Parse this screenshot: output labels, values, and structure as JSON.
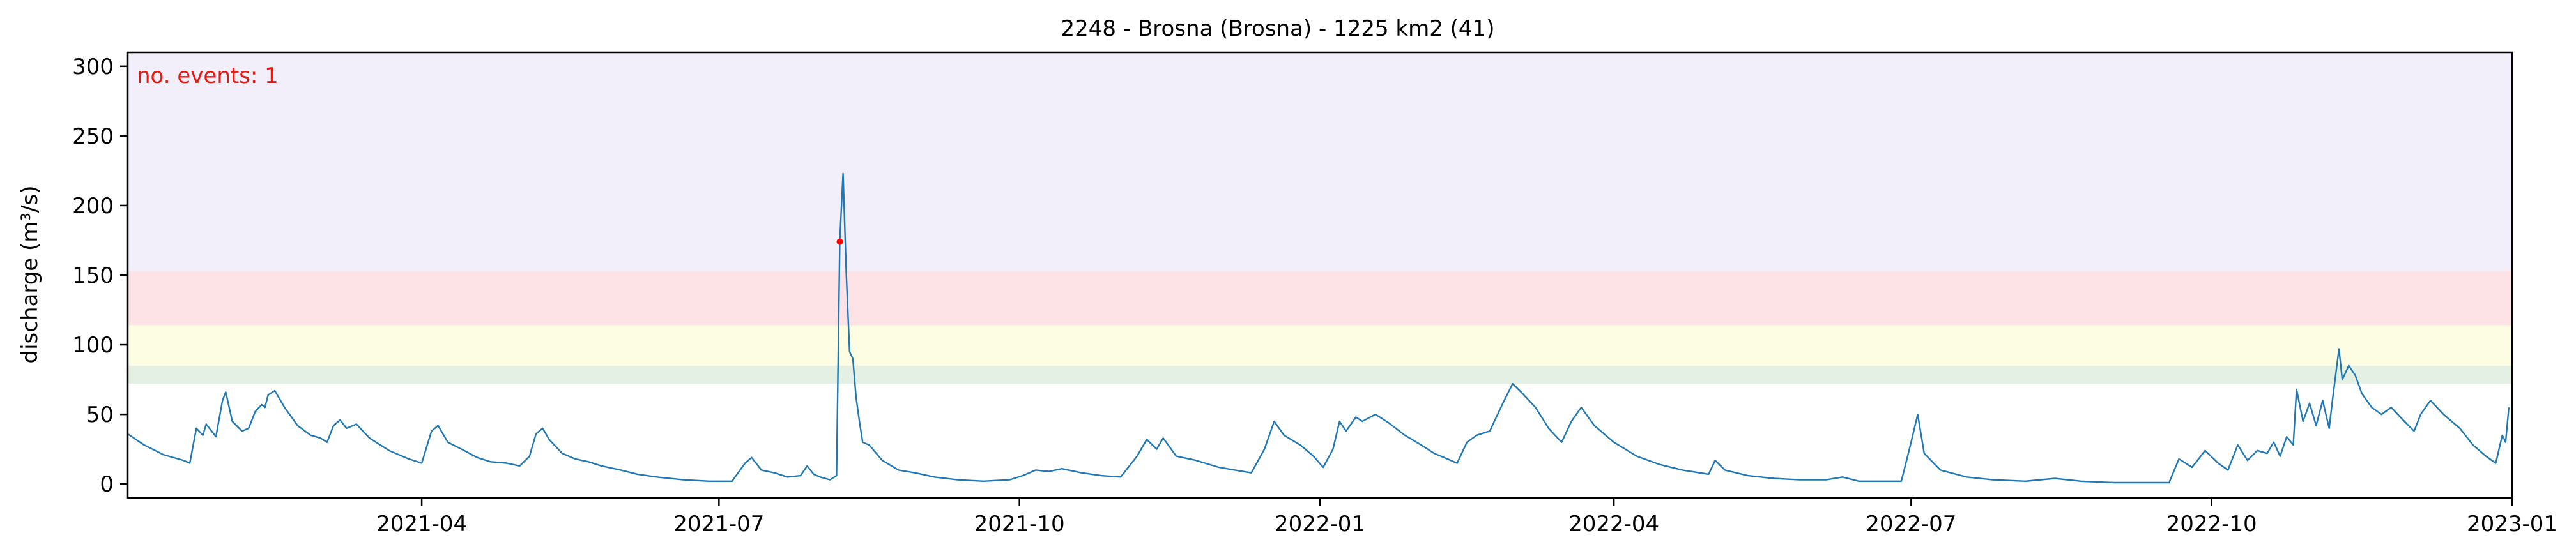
{
  "chart_data": {
    "type": "line",
    "title": "2248 - Brosna (Brosna) - 1225 km2 (41)",
    "xlabel": "",
    "ylabel": "discharge (m³/s)",
    "annotation": "no. events: 1",
    "xlim": [
      "2021-01-01",
      "2023-01-01"
    ],
    "ylim": [
      -10,
      310
    ],
    "grid": false,
    "x_ticks": [
      "2021-04",
      "2021-07",
      "2021-10",
      "2022-01",
      "2022-04",
      "2022-07",
      "2022-10",
      "2023-01"
    ],
    "y_ticks": [
      0,
      50,
      100,
      150,
      200,
      250,
      300
    ],
    "threshold_bands": [
      {
        "from": 72,
        "to": 85,
        "color": "#e3f0e3"
      },
      {
        "from": 85,
        "to": 114,
        "color": "#fdfde3"
      },
      {
        "from": 114,
        "to": 153,
        "color": "#fde3e6"
      },
      {
        "from": 153,
        "to": 310,
        "color": "#f2eefa"
      }
    ],
    "series": [
      {
        "color": "#1f77b4",
        "points": [
          [
            "2021-01-01",
            36
          ],
          [
            "2021-01-06",
            28
          ],
          [
            "2021-01-12",
            21
          ],
          [
            "2021-01-18",
            17
          ],
          [
            "2021-01-20",
            15
          ],
          [
            "2021-01-22",
            40
          ],
          [
            "2021-01-24",
            35
          ],
          [
            "2021-01-25",
            43
          ],
          [
            "2021-01-27",
            37
          ],
          [
            "2021-01-28",
            34
          ],
          [
            "2021-01-30",
            60
          ],
          [
            "2021-01-31",
            66
          ],
          [
            "2021-02-02",
            45
          ],
          [
            "2021-02-05",
            38
          ],
          [
            "2021-02-07",
            40
          ],
          [
            "2021-02-09",
            52
          ],
          [
            "2021-02-11",
            57
          ],
          [
            "2021-02-12",
            55
          ],
          [
            "2021-02-13",
            64
          ],
          [
            "2021-02-15",
            67
          ],
          [
            "2021-02-18",
            55
          ],
          [
            "2021-02-22",
            42
          ],
          [
            "2021-02-26",
            35
          ],
          [
            "2021-03-01",
            33
          ],
          [
            "2021-03-03",
            30
          ],
          [
            "2021-03-05",
            42
          ],
          [
            "2021-03-07",
            46
          ],
          [
            "2021-03-09",
            40
          ],
          [
            "2021-03-12",
            43
          ],
          [
            "2021-03-16",
            33
          ],
          [
            "2021-03-22",
            24
          ],
          [
            "2021-03-28",
            18
          ],
          [
            "2021-04-01",
            15
          ],
          [
            "2021-04-04",
            38
          ],
          [
            "2021-04-06",
            42
          ],
          [
            "2021-04-09",
            30
          ],
          [
            "2021-04-14",
            24
          ],
          [
            "2021-04-18",
            19
          ],
          [
            "2021-04-22",
            16
          ],
          [
            "2021-04-27",
            15
          ],
          [
            "2021-05-01",
            13
          ],
          [
            "2021-05-04",
            20
          ],
          [
            "2021-05-06",
            36
          ],
          [
            "2021-05-08",
            40
          ],
          [
            "2021-05-10",
            32
          ],
          [
            "2021-05-14",
            22
          ],
          [
            "2021-05-18",
            18
          ],
          [
            "2021-05-22",
            16
          ],
          [
            "2021-05-26",
            13
          ],
          [
            "2021-06-01",
            10
          ],
          [
            "2021-06-06",
            7
          ],
          [
            "2021-06-12",
            5
          ],
          [
            "2021-06-20",
            3
          ],
          [
            "2021-06-28",
            2
          ],
          [
            "2021-07-05",
            2
          ],
          [
            "2021-07-09",
            15
          ],
          [
            "2021-07-11",
            19
          ],
          [
            "2021-07-14",
            10
          ],
          [
            "2021-07-18",
            8
          ],
          [
            "2021-07-22",
            5
          ],
          [
            "2021-07-26",
            6
          ],
          [
            "2021-07-28",
            13
          ],
          [
            "2021-07-30",
            7
          ],
          [
            "2021-08-01",
            5
          ],
          [
            "2021-08-04",
            3
          ],
          [
            "2021-08-06",
            6
          ],
          [
            "2021-08-07",
            175
          ],
          [
            "2021-08-08",
            223
          ],
          [
            "2021-08-09",
            150
          ],
          [
            "2021-08-10",
            95
          ],
          [
            "2021-08-11",
            90
          ],
          [
            "2021-08-12",
            62
          ],
          [
            "2021-08-13",
            45
          ],
          [
            "2021-08-14",
            30
          ],
          [
            "2021-08-16",
            28
          ],
          [
            "2021-08-20",
            17
          ],
          [
            "2021-08-25",
            10
          ],
          [
            "2021-08-30",
            8
          ],
          [
            "2021-09-05",
            5
          ],
          [
            "2021-09-12",
            3
          ],
          [
            "2021-09-20",
            2
          ],
          [
            "2021-09-28",
            3
          ],
          [
            "2021-10-02",
            6
          ],
          [
            "2021-10-06",
            10
          ],
          [
            "2021-10-10",
            9
          ],
          [
            "2021-10-14",
            11
          ],
          [
            "2021-10-20",
            8
          ],
          [
            "2021-10-26",
            6
          ],
          [
            "2021-11-01",
            5
          ],
          [
            "2021-11-06",
            20
          ],
          [
            "2021-11-09",
            32
          ],
          [
            "2021-11-12",
            25
          ],
          [
            "2021-11-14",
            33
          ],
          [
            "2021-11-18",
            20
          ],
          [
            "2021-11-24",
            17
          ],
          [
            "2021-12-01",
            12
          ],
          [
            "2021-12-06",
            10
          ],
          [
            "2021-12-11",
            8
          ],
          [
            "2021-12-15",
            25
          ],
          [
            "2021-12-18",
            45
          ],
          [
            "2021-12-21",
            35
          ],
          [
            "2021-12-26",
            28
          ],
          [
            "2021-12-30",
            20
          ],
          [
            "2022-01-02",
            12
          ],
          [
            "2022-01-05",
            25
          ],
          [
            "2022-01-07",
            45
          ],
          [
            "2022-01-09",
            38
          ],
          [
            "2022-01-12",
            48
          ],
          [
            "2022-01-14",
            45
          ],
          [
            "2022-01-18",
            50
          ],
          [
            "2022-01-22",
            44
          ],
          [
            "2022-01-27",
            35
          ],
          [
            "2022-02-01",
            28
          ],
          [
            "2022-02-05",
            22
          ],
          [
            "2022-02-09",
            18
          ],
          [
            "2022-02-12",
            15
          ],
          [
            "2022-02-15",
            30
          ],
          [
            "2022-02-18",
            35
          ],
          [
            "2022-02-22",
            38
          ],
          [
            "2022-02-26",
            58
          ],
          [
            "2022-03-01",
            72
          ],
          [
            "2022-03-04",
            65
          ],
          [
            "2022-03-08",
            55
          ],
          [
            "2022-03-12",
            40
          ],
          [
            "2022-03-16",
            30
          ],
          [
            "2022-03-19",
            45
          ],
          [
            "2022-03-22",
            55
          ],
          [
            "2022-03-26",
            42
          ],
          [
            "2022-04-01",
            30
          ],
          [
            "2022-04-08",
            20
          ],
          [
            "2022-04-15",
            14
          ],
          [
            "2022-04-22",
            10
          ],
          [
            "2022-04-30",
            7
          ],
          [
            "2022-05-02",
            17
          ],
          [
            "2022-05-05",
            10
          ],
          [
            "2022-05-12",
            6
          ],
          [
            "2022-05-20",
            4
          ],
          [
            "2022-05-28",
            3
          ],
          [
            "2022-06-05",
            3
          ],
          [
            "2022-06-10",
            5
          ],
          [
            "2022-06-15",
            2
          ],
          [
            "2022-06-22",
            2
          ],
          [
            "2022-06-28",
            2
          ],
          [
            "2022-07-01",
            30
          ],
          [
            "2022-07-03",
            50
          ],
          [
            "2022-07-05",
            22
          ],
          [
            "2022-07-10",
            10
          ],
          [
            "2022-07-18",
            5
          ],
          [
            "2022-07-26",
            3
          ],
          [
            "2022-08-05",
            2
          ],
          [
            "2022-08-14",
            4
          ],
          [
            "2022-08-22",
            2
          ],
          [
            "2022-09-01",
            1
          ],
          [
            "2022-09-10",
            1
          ],
          [
            "2022-09-18",
            1
          ],
          [
            "2022-09-21",
            18
          ],
          [
            "2022-09-25",
            12
          ],
          [
            "2022-09-29",
            24
          ],
          [
            "2022-10-03",
            15
          ],
          [
            "2022-10-06",
            10
          ],
          [
            "2022-10-09",
            28
          ],
          [
            "2022-10-12",
            17
          ],
          [
            "2022-10-15",
            24
          ],
          [
            "2022-10-18",
            22
          ],
          [
            "2022-10-20",
            30
          ],
          [
            "2022-10-22",
            20
          ],
          [
            "2022-10-24",
            34
          ],
          [
            "2022-10-26",
            28
          ],
          [
            "2022-10-27",
            68
          ],
          [
            "2022-10-29",
            45
          ],
          [
            "2022-10-31",
            58
          ],
          [
            "2022-11-02",
            42
          ],
          [
            "2022-11-04",
            60
          ],
          [
            "2022-11-06",
            40
          ],
          [
            "2022-11-07",
            60
          ],
          [
            "2022-11-09",
            97
          ],
          [
            "2022-11-10",
            75
          ],
          [
            "2022-11-12",
            85
          ],
          [
            "2022-11-14",
            78
          ],
          [
            "2022-11-16",
            65
          ],
          [
            "2022-11-19",
            55
          ],
          [
            "2022-11-22",
            50
          ],
          [
            "2022-11-25",
            55
          ],
          [
            "2022-11-29",
            45
          ],
          [
            "2022-12-02",
            38
          ],
          [
            "2022-12-04",
            50
          ],
          [
            "2022-12-07",
            60
          ],
          [
            "2022-12-11",
            50
          ],
          [
            "2022-12-16",
            40
          ],
          [
            "2022-12-20",
            28
          ],
          [
            "2022-12-24",
            20
          ],
          [
            "2022-12-27",
            15
          ],
          [
            "2022-12-29",
            35
          ],
          [
            "2022-12-30",
            30
          ],
          [
            "2022-12-31",
            55
          ]
        ]
      }
    ],
    "event_markers": [
      {
        "x": "2021-08-07",
        "y": 174,
        "color": "#ff0000"
      }
    ]
  }
}
